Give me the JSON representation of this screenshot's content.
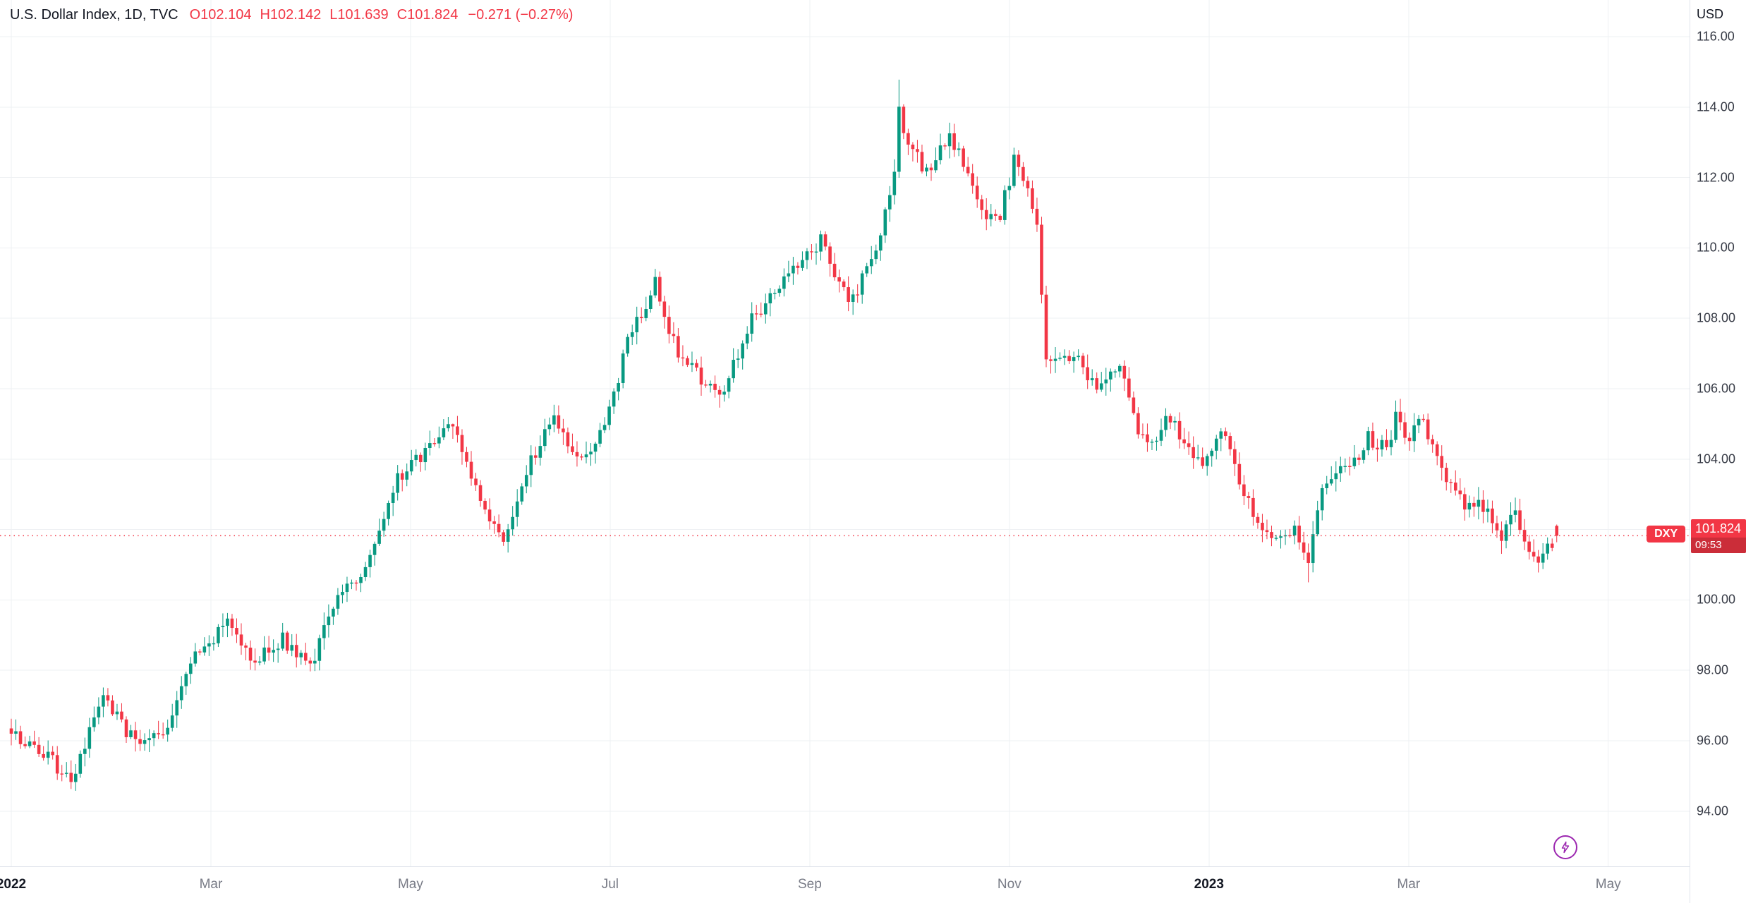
{
  "header": {
    "symbol_title": "U.S. Dollar Index, 1D, TVC",
    "ohlc": {
      "o_label": "O",
      "o": "102.104",
      "h_label": "H",
      "h": "102.142",
      "l_label": "L",
      "l": "101.639",
      "c_label": "C",
      "c": "101.824",
      "change": "−0.271 (−0.27%)"
    }
  },
  "price_axis": {
    "currency": "USD",
    "gridline_values": [
      94,
      96,
      98,
      100,
      102,
      104,
      106,
      108,
      110,
      112,
      114,
      116
    ],
    "ticks": [
      {
        "value": 116,
        "label": "116.00"
      },
      {
        "value": 114,
        "label": "114.00"
      },
      {
        "value": 112,
        "label": "112.00"
      },
      {
        "value": 110,
        "label": "110.00"
      },
      {
        "value": 108,
        "label": "108.00"
      },
      {
        "value": 106,
        "label": "106.00"
      },
      {
        "value": 104,
        "label": "104.00"
      },
      {
        "value": 100,
        "label": "100.00"
      },
      {
        "value": 98,
        "label": "98.00"
      },
      {
        "value": 96,
        "label": "96.00"
      },
      {
        "value": 94,
        "label": "94.00"
      }
    ],
    "price_label": {
      "symbol_badge": "DXY",
      "price": "101.824",
      "countdown": "09:53"
    }
  },
  "time_axis": {
    "ticks": [
      {
        "label": "2022",
        "month_offset": 0,
        "major": true
      },
      {
        "label": "Mar",
        "month_offset": 2,
        "major": false
      },
      {
        "label": "May",
        "month_offset": 4,
        "major": false
      },
      {
        "label": "Jul",
        "month_offset": 6,
        "major": false
      },
      {
        "label": "Sep",
        "month_offset": 8,
        "major": false
      },
      {
        "label": "Nov",
        "month_offset": 10,
        "major": false
      },
      {
        "label": "2023",
        "month_offset": 12,
        "major": true
      },
      {
        "label": "Mar",
        "month_offset": 14,
        "major": false
      },
      {
        "label": "May",
        "month_offset": 16,
        "major": false
      }
    ]
  },
  "chart_data": {
    "type": "candlestick",
    "title": "U.S. Dollar Index",
    "symbol": "DXY",
    "interval": "1D",
    "exchange": "TVC",
    "x_range": [
      "Jan 2022",
      "May 2023"
    ],
    "y_visible_range": [
      92.4,
      117.0
    ],
    "y_gridline_step": 2,
    "grid": true,
    "num_candles": 337,
    "last": {
      "open": 102.104,
      "high": 102.142,
      "low": 101.639,
      "close": 101.824,
      "change": -0.271,
      "change_pct": -0.27
    },
    "close_path": [
      [
        0,
        96.2
      ],
      [
        8,
        95.6
      ],
      [
        13,
        94.7
      ],
      [
        20,
        97.3
      ],
      [
        27,
        95.9
      ],
      [
        34,
        96.4
      ],
      [
        39,
        98.3
      ],
      [
        47,
        99.3
      ],
      [
        53,
        98.3
      ],
      [
        59,
        98.9
      ],
      [
        65,
        98.1
      ],
      [
        70,
        99.8
      ],
      [
        77,
        100.9
      ],
      [
        84,
        103.4
      ],
      [
        96,
        105.0
      ],
      [
        104,
        102.3
      ],
      [
        107,
        101.7
      ],
      [
        113,
        103.9
      ],
      [
        118,
        105.2
      ],
      [
        123,
        103.9
      ],
      [
        129,
        104.8
      ],
      [
        134,
        107.3
      ],
      [
        140,
        109.0
      ],
      [
        145,
        106.9
      ],
      [
        154,
        105.8
      ],
      [
        161,
        108.0
      ],
      [
        166,
        108.7
      ],
      [
        171,
        109.6
      ],
      [
        176,
        110.2
      ],
      [
        182,
        108.4
      ],
      [
        188,
        109.8
      ],
      [
        192,
        112.1
      ],
      [
        193,
        113.9
      ],
      [
        195,
        112.9
      ],
      [
        199,
        112.2
      ],
      [
        204,
        113.2
      ],
      [
        207,
        112.4
      ],
      [
        211,
        111.0
      ],
      [
        215,
        110.9
      ],
      [
        218,
        112.5
      ],
      [
        221,
        111.5
      ],
      [
        223,
        110.5
      ],
      [
        225,
        106.9
      ],
      [
        229,
        107.0
      ],
      [
        233,
        106.7
      ],
      [
        236,
        105.9
      ],
      [
        241,
        106.6
      ],
      [
        245,
        104.9
      ],
      [
        248,
        104.5
      ],
      [
        252,
        105.2
      ],
      [
        255,
        104.3
      ],
      [
        258,
        103.9
      ],
      [
        261,
        104.2
      ],
      [
        264,
        104.8
      ],
      [
        268,
        103.0
      ],
      [
        271,
        102.2
      ],
      [
        275,
        101.7
      ],
      [
        279,
        101.9
      ],
      [
        282,
        101.0
      ],
      [
        285,
        103.2
      ],
      [
        288,
        103.6
      ],
      [
        292,
        103.9
      ],
      [
        295,
        104.6
      ],
      [
        299,
        104.3
      ],
      [
        301,
        105.2
      ],
      [
        304,
        104.6
      ],
      [
        306,
        105.3
      ],
      [
        308,
        104.6
      ],
      [
        311,
        103.7
      ],
      [
        313,
        103.2
      ],
      [
        316,
        102.6
      ],
      [
        319,
        102.8
      ],
      [
        322,
        102.2
      ],
      [
        324,
        101.7
      ],
      [
        327,
        102.6
      ],
      [
        329,
        101.6
      ],
      [
        332,
        101.0
      ],
      [
        334,
        101.5
      ],
      [
        336,
        101.824
      ]
    ],
    "extremes": [
      {
        "i": 193,
        "high": 114.78
      },
      {
        "i": 13,
        "low": 94.63
      },
      {
        "i": 96,
        "high": 105.01
      },
      {
        "i": 282,
        "low": 100.5
      },
      {
        "i": 332,
        "low": 100.78
      }
    ],
    "up_color": "#089981",
    "down_color": "#f23645"
  },
  "colors": {
    "up": "#089981",
    "down": "#f23645",
    "accent_red": "#f23645",
    "grid": "#eef0f3",
    "axis_text": "#363a45",
    "title_text": "#131722",
    "muted_text": "#787b86",
    "quick_trade_purple": "#9c27b0"
  }
}
